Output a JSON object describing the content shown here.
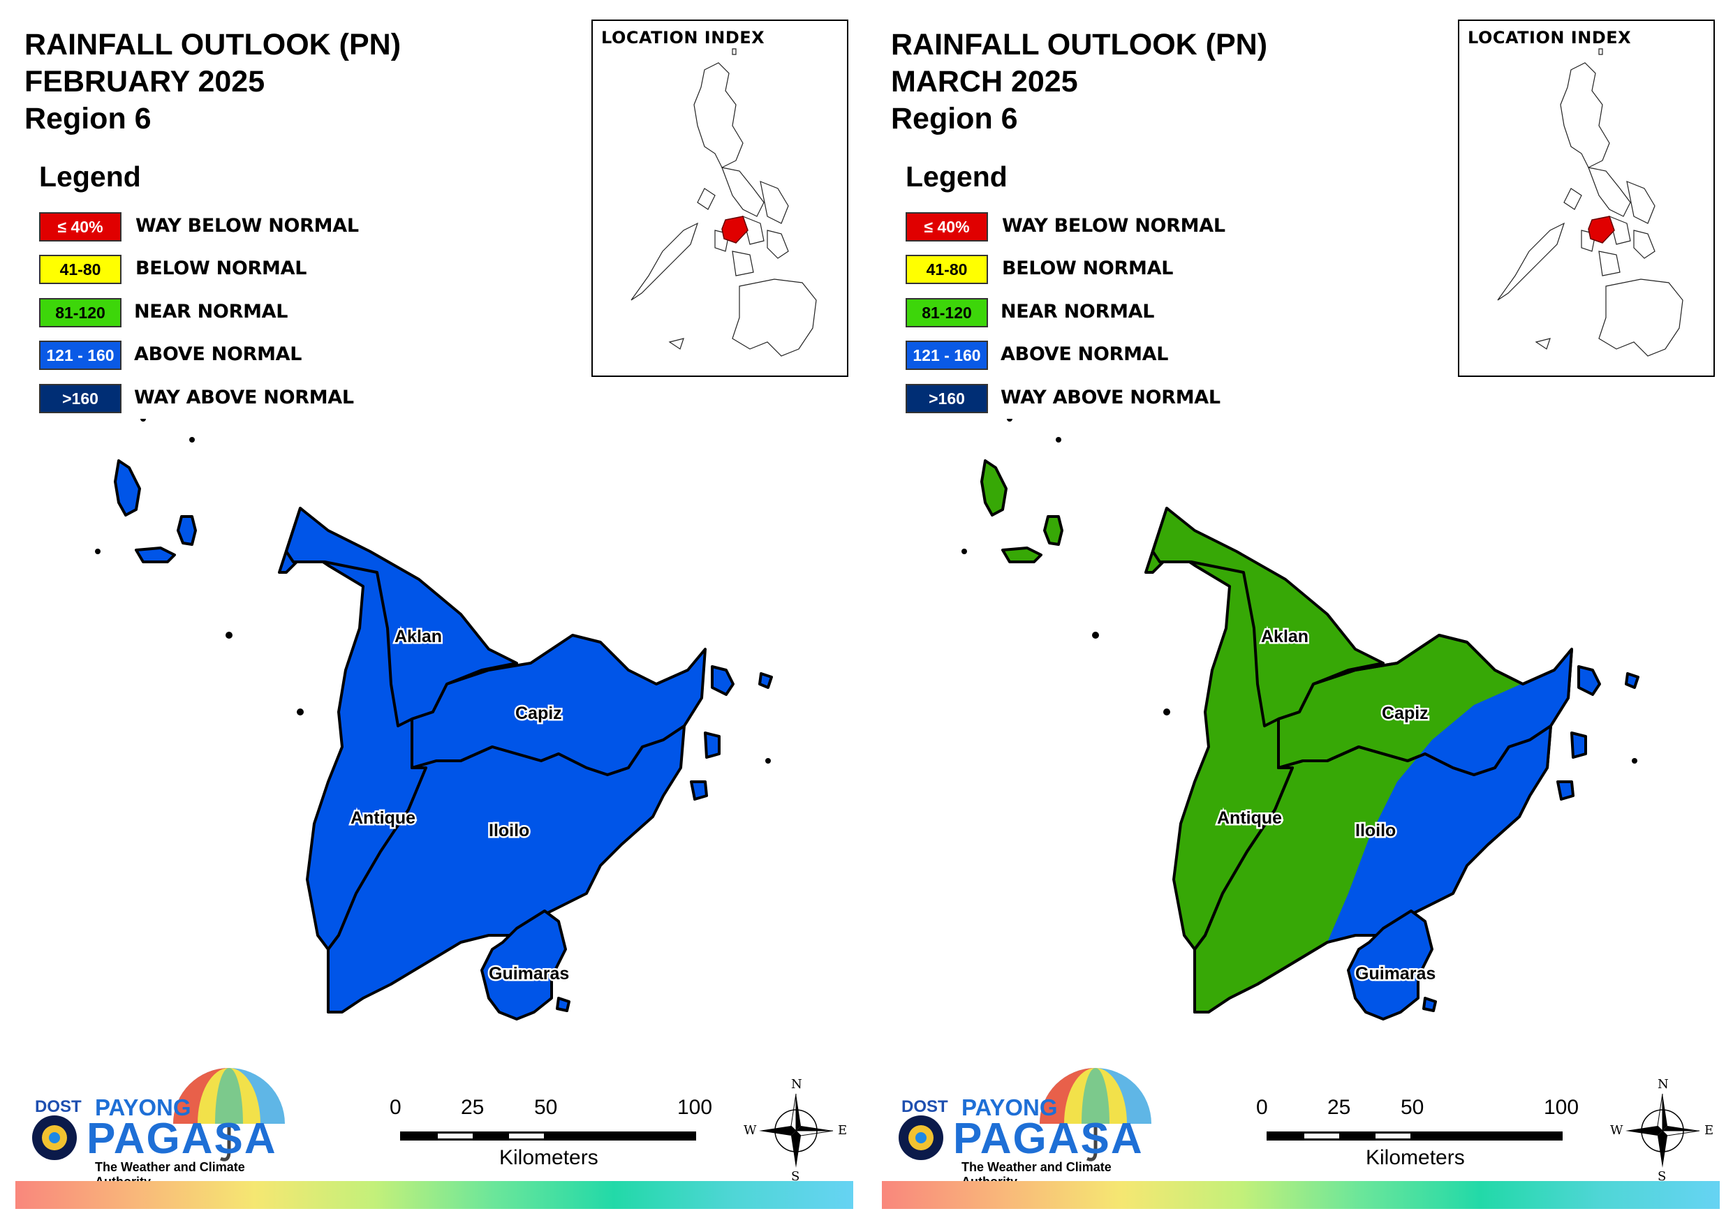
{
  "panels": [
    {
      "title_line1": "RAINFALL OUTLOOK (PN)",
      "title_line2": "FEBRUARY 2025",
      "title_line3": "Region 6",
      "provinces": {
        "aklan": "Aklan",
        "capiz": "Capiz",
        "antique": "Antique",
        "iloilo": "Iloilo",
        "guimaras": "Guimaras"
      },
      "fill_primary": "#0055e8",
      "fill_secondary": "#0055e8"
    },
    {
      "title_line1": "RAINFALL OUTLOOK (PN)",
      "title_line2": "MARCH 2025",
      "title_line3": "Region 6",
      "provinces": {
        "aklan": "Aklan",
        "capiz": "Capiz",
        "antique": "Antique",
        "iloilo": "Iloilo",
        "guimaras": "Guimaras"
      },
      "fill_primary": "#37a806",
      "fill_secondary": "#0055e8"
    }
  ],
  "legend": {
    "title": "Legend",
    "items": [
      {
        "range": "≤ 40%",
        "label": "WAY BELOW NORMAL",
        "color": "#e00000",
        "text_color": "#ffffff"
      },
      {
        "range": "41-80",
        "label": "BELOW NORMAL",
        "color": "#ffff00",
        "text_color": "#000000"
      },
      {
        "range": "81-120",
        "label": "NEAR NORMAL",
        "color": "#3dd60a",
        "text_color": "#000000"
      },
      {
        "range": "121 - 160",
        "label": "ABOVE NORMAL",
        "color": "#0a5ae6",
        "text_color": "#ffffff"
      },
      {
        "range": ">160",
        "label": "WAY ABOVE NORMAL",
        "color": "#002e75",
        "text_color": "#ffffff"
      }
    ]
  },
  "location_index": {
    "title": "LOCATION INDEX"
  },
  "scale": {
    "ticks": [
      "0",
      "25",
      "50",
      "100"
    ],
    "unit": "Kilometers"
  },
  "compass": {
    "n": "N",
    "s": "S",
    "e": "E",
    "w": "W"
  },
  "logo": {
    "dost": "DOST",
    "payong": "PAYONG",
    "pagasa": "PAGASA",
    "tagline": "The Weather and Climate Authority"
  }
}
